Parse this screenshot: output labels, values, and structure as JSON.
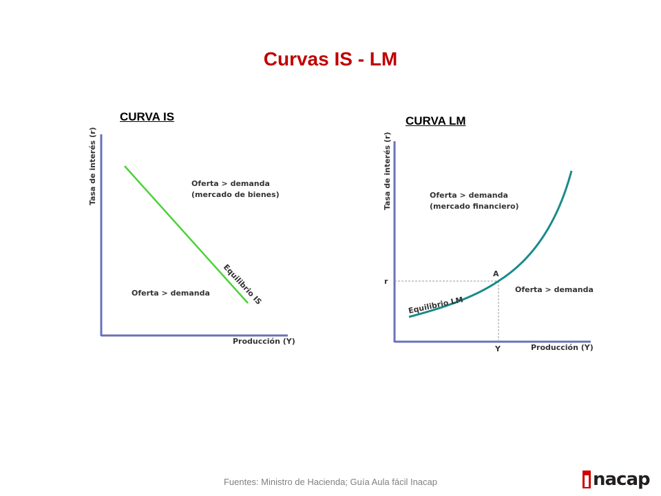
{
  "title": "Curvas IS - LM",
  "footer": "Fuentes: Ministro de Hacienda; Guía Aula fácil Inacap",
  "logo": {
    "text": "nacap",
    "color": "#d00000"
  },
  "is_chart": {
    "label": "CURVA IS",
    "y_axis": "Tasa de interés (r)",
    "x_axis": "Producción (Y)",
    "upper_area": "Oferta > demanda",
    "upper_area_sub": "(mercado de bienes)",
    "lower_area": "Oferta > demanda",
    "curve_label": "Equilibrio IS",
    "curve_color": "#4cd137",
    "axis_color": "#6a70b8"
  },
  "lm_chart": {
    "label": "CURVA LM",
    "y_axis": "Tasa de interés (r)",
    "x_axis": "Producción (Y)",
    "upper_area": "Oferta > demanda",
    "upper_area_sub": "(mercado financiero)",
    "lower_area": "Oferta > demanda",
    "curve_label": "Equilibrio LM",
    "point_label": "A",
    "r_tick": "r",
    "y_tick": "Y",
    "curve_color": "#1a8a8a",
    "axis_color": "#6a70b8"
  }
}
